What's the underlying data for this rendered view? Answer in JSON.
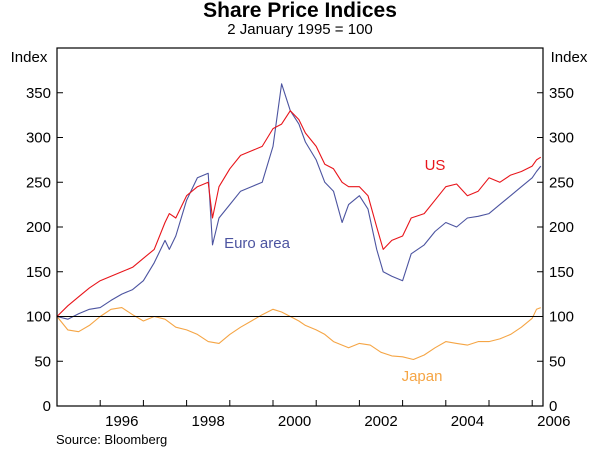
{
  "chart_data": {
    "type": "line",
    "title": "Share Price Indices",
    "subtitle": "2 January 1995 = 100",
    "source": "Source: Bloomberg",
    "ylabel_left": "Index",
    "ylabel_right": "Index",
    "xlim": [
      1995.0,
      2006.25
    ],
    "ylim": [
      0,
      400
    ],
    "yticks": [
      0,
      50,
      100,
      150,
      200,
      250,
      300,
      350
    ],
    "xticks": [
      1996,
      1998,
      2000,
      2002,
      2004,
      2006
    ],
    "xtick_labels": [
      "1996",
      "1998",
      "2000",
      "2002",
      "2004",
      "2006"
    ],
    "baseline": 100,
    "series": [
      {
        "name": "US",
        "label_text": "US",
        "color": "#e8151b",
        "x": [
          1995.0,
          1995.25,
          1995.5,
          1995.75,
          1996.0,
          1996.25,
          1996.5,
          1996.75,
          1997.0,
          1997.25,
          1997.5,
          1997.6,
          1997.75,
          1998.0,
          1998.25,
          1998.5,
          1998.6,
          1998.75,
          1999.0,
          1999.25,
          1999.5,
          1999.75,
          2000.0,
          2000.2,
          2000.4,
          2000.6,
          2000.75,
          2001.0,
          2001.2,
          2001.4,
          2001.6,
          2001.75,
          2002.0,
          2002.2,
          2002.4,
          2002.55,
          2002.75,
          2003.0,
          2003.2,
          2003.5,
          2003.75,
          2004.0,
          2004.25,
          2004.5,
          2004.75,
          2005.0,
          2005.25,
          2005.5,
          2005.75,
          2006.0,
          2006.1,
          2006.2
        ],
        "values": [
          100,
          112,
          122,
          132,
          140,
          145,
          150,
          155,
          165,
          175,
          205,
          215,
          210,
          235,
          245,
          250,
          210,
          245,
          265,
          280,
          285,
          290,
          310,
          315,
          330,
          320,
          305,
          290,
          270,
          265,
          250,
          245,
          245,
          235,
          200,
          175,
          185,
          190,
          210,
          215,
          230,
          245,
          248,
          235,
          240,
          255,
          250,
          258,
          262,
          268,
          275,
          278
        ]
      },
      {
        "name": "Euro area",
        "label_text": "Euro area",
        "color": "#4c54a0",
        "x": [
          1995.0,
          1995.25,
          1995.5,
          1995.75,
          1996.0,
          1996.25,
          1996.5,
          1996.75,
          1997.0,
          1997.25,
          1997.5,
          1997.6,
          1997.75,
          1998.0,
          1998.25,
          1998.5,
          1998.6,
          1998.75,
          1999.0,
          1999.25,
          1999.5,
          1999.75,
          2000.0,
          2000.2,
          2000.4,
          2000.6,
          2000.75,
          2001.0,
          2001.2,
          2001.4,
          2001.6,
          2001.75,
          2002.0,
          2002.2,
          2002.4,
          2002.55,
          2002.75,
          2003.0,
          2003.2,
          2003.5,
          2003.75,
          2004.0,
          2004.25,
          2004.5,
          2004.75,
          2005.0,
          2005.25,
          2005.5,
          2005.75,
          2006.0,
          2006.1,
          2006.2
        ],
        "values": [
          100,
          97,
          103,
          108,
          110,
          118,
          125,
          130,
          140,
          160,
          185,
          175,
          190,
          230,
          255,
          260,
          180,
          210,
          225,
          240,
          245,
          250,
          290,
          360,
          330,
          315,
          295,
          275,
          250,
          240,
          205,
          225,
          235,
          220,
          175,
          150,
          145,
          140,
          170,
          180,
          195,
          205,
          200,
          210,
          212,
          215,
          225,
          235,
          245,
          255,
          262,
          268
        ]
      },
      {
        "name": "Japan",
        "label_text": "Japan",
        "color": "#f5a545",
        "x": [
          1995.0,
          1995.25,
          1995.5,
          1995.75,
          1996.0,
          1996.25,
          1996.5,
          1996.75,
          1997.0,
          1997.25,
          1997.5,
          1997.75,
          1998.0,
          1998.25,
          1998.5,
          1998.75,
          1999.0,
          1999.25,
          1999.5,
          1999.75,
          2000.0,
          2000.2,
          2000.4,
          2000.6,
          2000.75,
          2001.0,
          2001.2,
          2001.4,
          2001.6,
          2001.75,
          2002.0,
          2002.25,
          2002.5,
          2002.75,
          2003.0,
          2003.25,
          2003.5,
          2003.75,
          2004.0,
          2004.25,
          2004.5,
          2004.75,
          2005.0,
          2005.25,
          2005.5,
          2005.75,
          2006.0,
          2006.1,
          2006.2
        ],
        "values": [
          100,
          85,
          83,
          90,
          100,
          108,
          110,
          102,
          95,
          100,
          97,
          88,
          85,
          80,
          72,
          70,
          80,
          88,
          95,
          102,
          108,
          105,
          100,
          95,
          90,
          85,
          80,
          72,
          68,
          65,
          70,
          68,
          60,
          56,
          55,
          52,
          57,
          65,
          72,
          70,
          68,
          72,
          72,
          75,
          80,
          88,
          98,
          108,
          110
        ]
      }
    ]
  }
}
